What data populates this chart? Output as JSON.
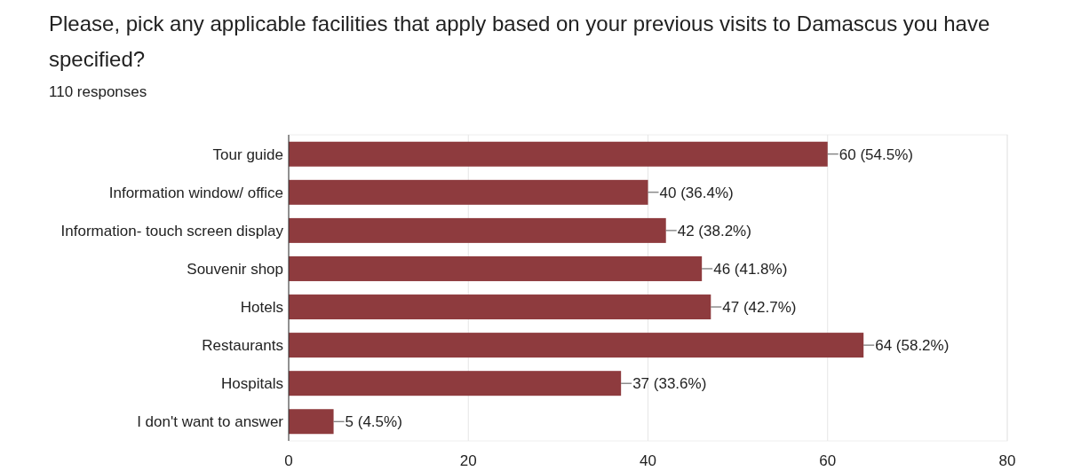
{
  "chart_data": {
    "type": "bar",
    "orientation": "horizontal",
    "title": "Please, pick any applicable facilities that apply based on your previous visits to Damascus you have specified?",
    "subtitle": "110 responses",
    "categories": [
      "Tour guide",
      "Information window/ office",
      "Information- touch screen display",
      "Souvenir shop",
      "Hotels",
      "Restaurants",
      "Hospitals",
      "I don't want to answer"
    ],
    "values": [
      60,
      40,
      42,
      46,
      47,
      64,
      37,
      5
    ],
    "value_labels": [
      "60 (54.5%)",
      "40 (36.4%)",
      "42 (38.2%)",
      "46 (41.8%)",
      "47 (42.7%)",
      "64 (58.2%)",
      "37 (33.6%)",
      "5 (4.5%)"
    ],
    "color": "#8e3b3e",
    "xlim": [
      0,
      80
    ],
    "xticks": [
      0,
      20,
      40,
      60,
      80
    ],
    "grid": "x"
  }
}
